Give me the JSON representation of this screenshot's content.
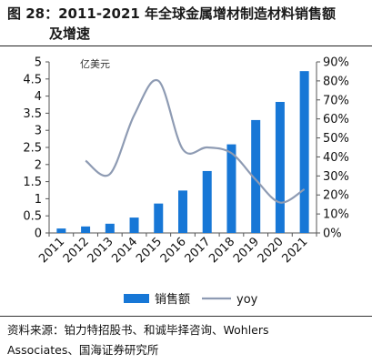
{
  "figure": {
    "title_line1": "图 28：2011-2021 年全球金属增材制造材料销售额",
    "title_line2": "及增速",
    "source_line1": "资料来源：铂力特招股书、和诚毕择咨询、Wohlers",
    "source_line2": "Associates、国海证券研究所"
  },
  "chart_data": {
    "type": "bar",
    "categories": [
      "2011",
      "2012",
      "2013",
      "2014",
      "2015",
      "2016",
      "2017",
      "2018",
      "2019",
      "2020",
      "2021"
    ],
    "unit_label": "亿美元",
    "y_left": {
      "min": 0,
      "max": 5,
      "step": 0.5,
      "ticks": [
        "0",
        "0.5",
        "1",
        "1.5",
        "2",
        "2.5",
        "3",
        "3.5",
        "4",
        "4.5",
        "5"
      ]
    },
    "y_right": {
      "min": 0,
      "max": 90,
      "step": 10,
      "ticks": [
        "0%",
        "10%",
        "20%",
        "30%",
        "40%",
        "50%",
        "60%",
        "70%",
        "80%",
        "90%"
      ]
    },
    "series": [
      {
        "name": "销售额",
        "type": "bar",
        "axis": "left",
        "color": "#1777d6",
        "values": [
          0.13,
          0.19,
          0.27,
          0.45,
          0.86,
          1.24,
          1.81,
          2.59,
          3.3,
          3.83,
          4.73
        ]
      },
      {
        "name": "yoy",
        "type": "line",
        "axis": "right",
        "color": "#8e9bb3",
        "values": [
          null,
          38,
          31,
          62,
          80,
          44,
          45,
          42,
          28,
          16,
          23
        ]
      }
    ],
    "legend_position": "bottom",
    "grid": false
  }
}
